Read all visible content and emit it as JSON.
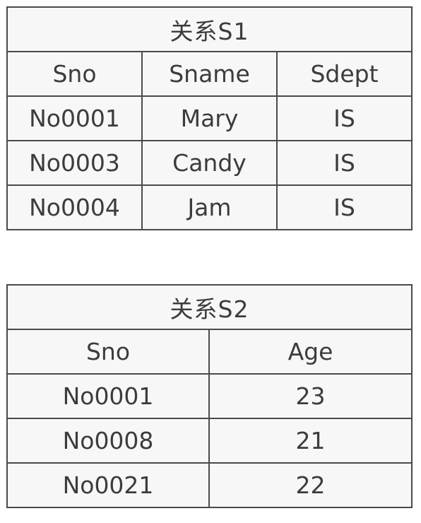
{
  "tables": [
    {
      "title": "关系S1",
      "columns": [
        "Sno",
        "Sname",
        "Sdept"
      ],
      "rows": [
        [
          "No0001",
          "Mary",
          "IS"
        ],
        [
          "No0003",
          "Candy",
          "IS"
        ],
        [
          "No0004",
          "Jam",
          "IS"
        ]
      ]
    },
    {
      "title": "关系S2",
      "columns": [
        "Sno",
        "Age"
      ],
      "rows": [
        [
          "No0001",
          "23"
        ],
        [
          "No0008",
          "21"
        ],
        [
          "No0021",
          "22"
        ]
      ]
    }
  ]
}
